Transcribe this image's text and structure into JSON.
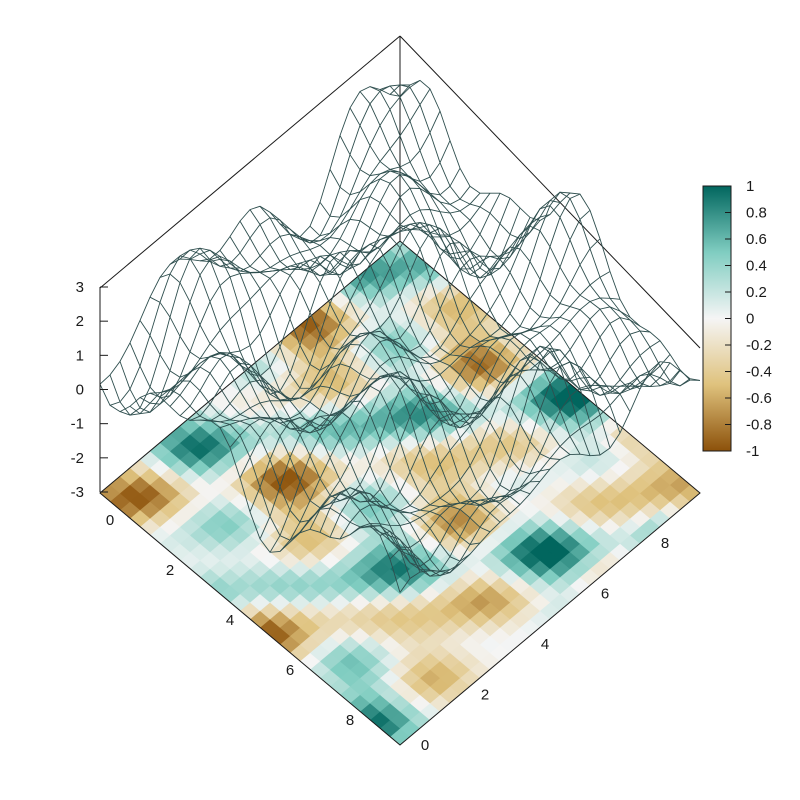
{
  "chart_data": {
    "type": "heatmap",
    "subtype": "3d-wireframe-surface-with-base-heatmap-projection",
    "title": "",
    "x": {
      "label": "",
      "range": [
        0,
        9
      ],
      "ticks": [
        "0",
        "2",
        "4",
        "6",
        "8"
      ]
    },
    "y": {
      "label": "",
      "range": [
        0,
        9
      ],
      "ticks": [
        "0",
        "2",
        "4",
        "6",
        "8"
      ]
    },
    "z": {
      "label": "",
      "range": [
        -3,
        3
      ],
      "ticks": [
        "-3",
        "-2",
        "-1",
        "0",
        "1",
        "2",
        "3"
      ]
    },
    "colorbar": {
      "range": [
        -1,
        1
      ],
      "ticks": [
        "1",
        "0.8",
        "0.6",
        "0.4",
        "0.2",
        "0",
        "-0.2",
        "-0.4",
        "-0.6",
        "-0.8",
        "-1"
      ],
      "colors": {
        "low": "#8c510a",
        "mid_low": "#dfc27d",
        "mid": "#f5f5f5",
        "mid_high": "#80cdc1",
        "high": "#01665e"
      }
    },
    "grid_resolution": 30,
    "surface_color": "#2f4f4f",
    "grid": false,
    "legend": "none"
  }
}
